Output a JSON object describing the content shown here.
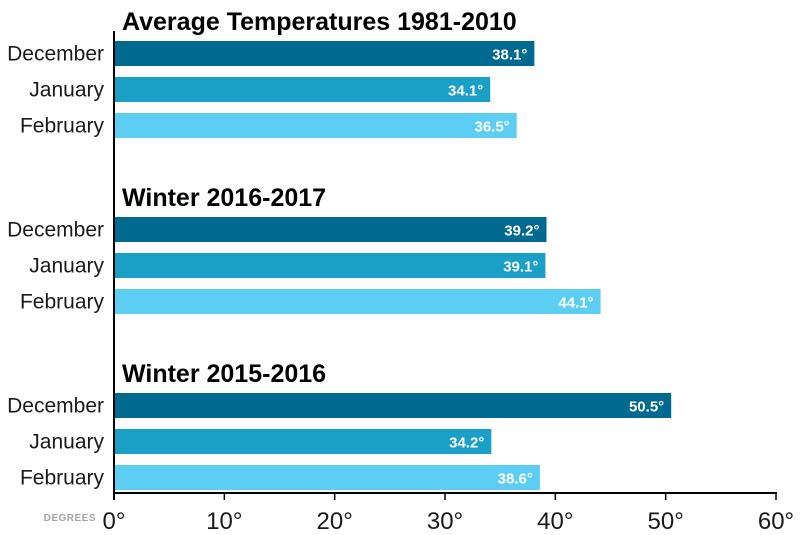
{
  "chart_data": {
    "type": "bar",
    "orientation": "horizontal",
    "xlabel": "DEGREES",
    "xlim": [
      0,
      60
    ],
    "xticks": [
      0,
      10,
      20,
      30,
      40,
      50,
      60
    ],
    "tick_suffix": "°",
    "grid": false,
    "groups": [
      {
        "title": "Average Temperatures 1981-2010",
        "bars": [
          {
            "category": "December",
            "value": 38.1,
            "label": "38.1°"
          },
          {
            "category": "January",
            "value": 34.1,
            "label": "34.1°"
          },
          {
            "category": "February",
            "value": 36.5,
            "label": "36.5°"
          }
        ]
      },
      {
        "title": "Winter 2016-2017",
        "bars": [
          {
            "category": "December",
            "value": 39.2,
            "label": "39.2°"
          },
          {
            "category": "January",
            "value": 39.1,
            "label": "39.1°"
          },
          {
            "category": "February",
            "value": 44.1,
            "label": "44.1°"
          }
        ]
      },
      {
        "title": "Winter 2015-2016",
        "bars": [
          {
            "category": "December",
            "value": 50.5,
            "label": "50.5°"
          },
          {
            "category": "January",
            "value": 34.2,
            "label": "34.2°"
          },
          {
            "category": "February",
            "value": 38.6,
            "label": "38.6°"
          }
        ]
      }
    ],
    "colors": {
      "December": "#00698f",
      "January": "#1a9fc6",
      "February": "#5ccdf3",
      "axis": "#000000"
    }
  }
}
